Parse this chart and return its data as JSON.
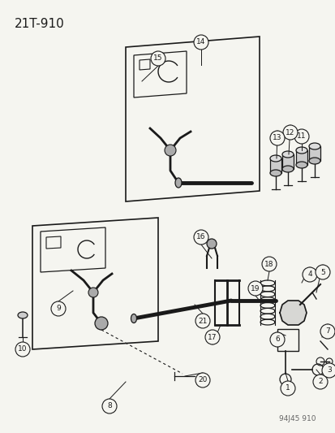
{
  "title": "21T-910",
  "watermark": "94J45 910",
  "bg_color": "#f5f5f0",
  "title_fontsize": 11,
  "line_color": "#1a1a1a",
  "gray": "#888888",
  "light_gray": "#cccccc",
  "mid_gray": "#aaaaaa"
}
